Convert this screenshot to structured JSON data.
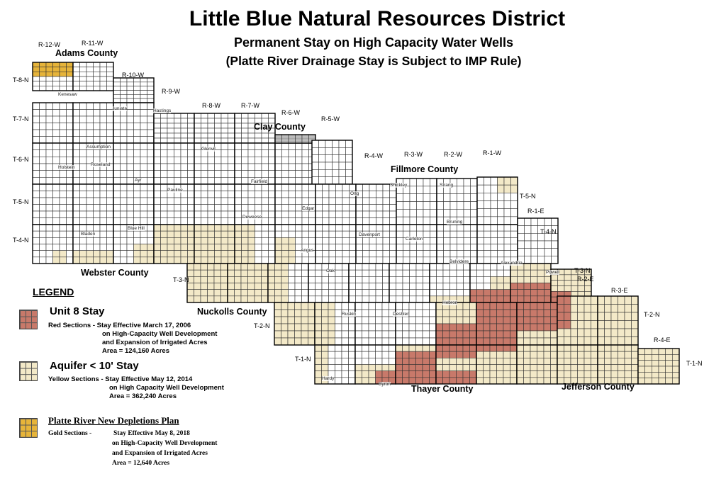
{
  "title": {
    "main": "Little Blue Natural Resources District",
    "sub1": "Permanent Stay on High Capacity  Water Wells",
    "sub2": "(Platte River Drainage Stay is Subject to IMP Rule)"
  },
  "ranges_west": [
    "R-12-W",
    "R-11-W",
    "R-10-W",
    "R-9-W",
    "R-8-W",
    "R-7-W",
    "R-6-W",
    "R-5-W",
    "R-4-W",
    "R-3-W",
    "R-2-W",
    "R-1-W"
  ],
  "ranges_east": [
    "R-1-E",
    "R-2-E",
    "R-3-E",
    "R-4-E"
  ],
  "townships": [
    "T-8-N",
    "T-7-N",
    "T-6-N",
    "T-5-N",
    "T-4-N",
    "T-3-N",
    "T-2-N",
    "T-1-N",
    "T-5-N",
    "T-4-N",
    "T-3-N",
    "T-2-N",
    "T-1-N"
  ],
  "counties": [
    "Adams County",
    "Clay County",
    "Fillmore County",
    "Webster County",
    "Nuckolls County",
    "Thayer County",
    "Jefferson County"
  ],
  "towns": [
    "Kenesaw",
    "Juniata",
    "Hastings",
    "Assumption",
    "Roseland",
    "Holstein",
    "Glenvil",
    "Ayr",
    "Fairfield",
    "Pauline",
    "Deweese",
    "Edgar",
    "Ong",
    "Shickley",
    "Strang",
    "Bladen",
    "Blue Hill",
    "Angus",
    "Davenport",
    "Carleton",
    "Bruning",
    "Oak",
    "Belvidere",
    "Alexandria",
    "Powell",
    "Ruskin",
    "Deshler",
    "Hebron",
    "Hardy",
    "Byron"
  ],
  "legend": {
    "heading": "LEGEND",
    "unit8": {
      "title": "Unit 8 Stay",
      "line1": "Red Sections - Stay Effective March 17, 2006",
      "line2": "on High-Capacity Well Development",
      "line3": "and Expansion of Irrigated Acres",
      "line4": "Area = 124,160 Acres",
      "color": "#c8796a"
    },
    "aquifer": {
      "title": "Aquifer < 10' Stay",
      "line1": "Yellow Sections - Stay Effective May 12, 2014",
      "line2": "on High Capacity Well Development",
      "line3": "Area = 362,240 Acres",
      "color": "#f3e9c8"
    },
    "platte": {
      "title": "Platte River New Depletions Plan",
      "line1": "Gold Sections -",
      "line1b": "Stay Effective May 8, 2018",
      "line2": "on High-Capacity Well Development",
      "line3": "and Expansion of Irrigated Acres",
      "line4": "Area = 12,640 Acres",
      "color": "#e6b43a"
    }
  }
}
